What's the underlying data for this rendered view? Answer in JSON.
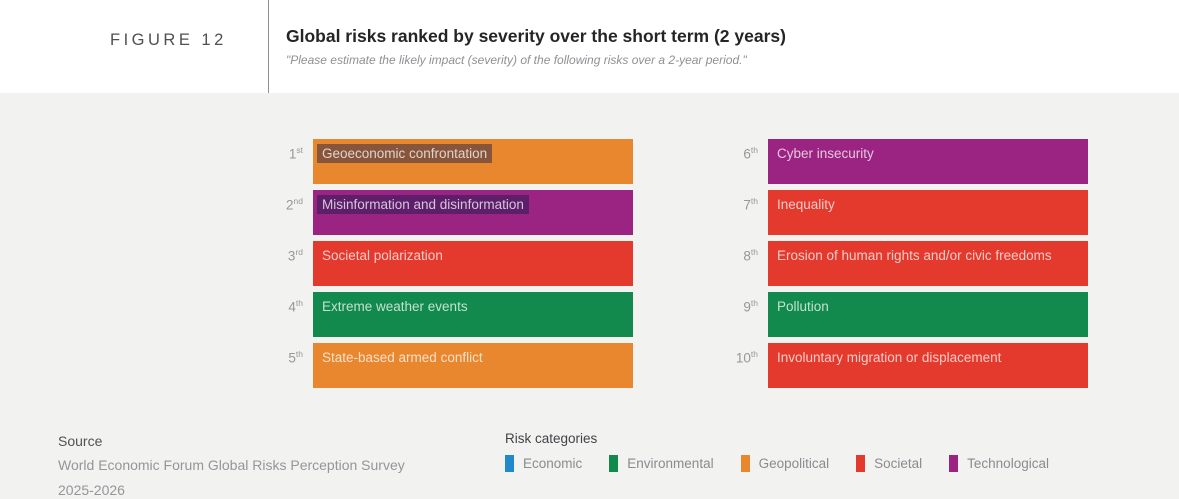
{
  "figure": {
    "label": "FIGURE 12",
    "title": "Global risks ranked by severity over the short term (2 years)",
    "subtitle": "\"Please estimate the likely impact (severity) of the following risks over a 2-year period.\""
  },
  "ranking": [
    {
      "rank_num": "1",
      "rank_suffix": "st",
      "label": "Geoeconomic confrontation",
      "category": "Geopolitical",
      "color": "#E8872E"
    },
    {
      "rank_num": "2",
      "rank_suffix": "nd",
      "label": "Misinformation and disinformation",
      "category": "Technological",
      "color": "#9B2482"
    },
    {
      "rank_num": "3",
      "rank_suffix": "rd",
      "label": "Societal polarization",
      "category": "Societal",
      "color": "#E4392D"
    },
    {
      "rank_num": "4",
      "rank_suffix": "th",
      "label": "Extreme weather events",
      "category": "Environmental",
      "color": "#128A4D"
    },
    {
      "rank_num": "5",
      "rank_suffix": "th",
      "label": "State-based armed conflict",
      "category": "Geopolitical",
      "color": "#E8872E"
    },
    {
      "rank_num": "6",
      "rank_suffix": "th",
      "label": "Cyber insecurity",
      "category": "Technological",
      "color": "#9B2482"
    },
    {
      "rank_num": "7",
      "rank_suffix": "th",
      "label": "Inequality",
      "category": "Societal",
      "color": "#E4392D"
    },
    {
      "rank_num": "8",
      "rank_suffix": "th",
      "label": "Erosion of human rights and/or civic freedoms",
      "category": "Societal",
      "color": "#E4392D"
    },
    {
      "rank_num": "9",
      "rank_suffix": "th",
      "label": "Pollution",
      "category": "Environmental",
      "color": "#128A4D"
    },
    {
      "rank_num": "10",
      "rank_suffix": "th",
      "label": "Involuntary migration or displacement",
      "category": "Societal",
      "color": "#E4392D"
    }
  ],
  "source": {
    "heading": "Source",
    "line1": "World Economic Forum Global Risks Perception Survey",
    "line2": "2025-2026"
  },
  "legend": {
    "heading": "Risk categories",
    "items": [
      {
        "label": "Economic",
        "color": "#2188C9"
      },
      {
        "label": "Environmental",
        "color": "#128A4D"
      },
      {
        "label": "Geopolitical",
        "color": "#E8872E"
      },
      {
        "label": "Societal",
        "color": "#E4392D"
      },
      {
        "label": "Technological",
        "color": "#9B2482"
      }
    ]
  },
  "chart_data": {
    "type": "bar",
    "title": "Global risks ranked by severity over the short term (2 years)",
    "subtitle": "\"Please estimate the likely impact (severity) of the following risks over a 2-year period.\"",
    "layout": "two-column ranked list; ranks 1st-5th in left column, 6th-10th in right column; equal-length horizontal bars colored by risk category; legend at bottom",
    "ranks": [
      "1st",
      "2nd",
      "3rd",
      "4th",
      "5th",
      "6th",
      "7th",
      "8th",
      "9th",
      "10th"
    ],
    "risks": [
      "Geoeconomic confrontation",
      "Misinformation and disinformation",
      "Societal polarization",
      "Extreme weather events",
      "State-based armed conflict",
      "Cyber insecurity",
      "Inequality",
      "Erosion of human rights and/or civic freedoms",
      "Pollution",
      "Involuntary migration or displacement"
    ],
    "risk_categories": [
      "Geopolitical",
      "Technological",
      "Societal",
      "Environmental",
      "Geopolitical",
      "Technological",
      "Societal",
      "Societal",
      "Environmental",
      "Societal"
    ],
    "category_colors": {
      "Economic": "#2188C9",
      "Environmental": "#128A4D",
      "Geopolitical": "#E8872E",
      "Societal": "#E4392D",
      "Technological": "#9B2482"
    },
    "legend_entries": [
      "Economic",
      "Environmental",
      "Geopolitical",
      "Societal",
      "Technological"
    ],
    "source": "World Economic Forum Global Risks Perception Survey 2025-2026"
  }
}
